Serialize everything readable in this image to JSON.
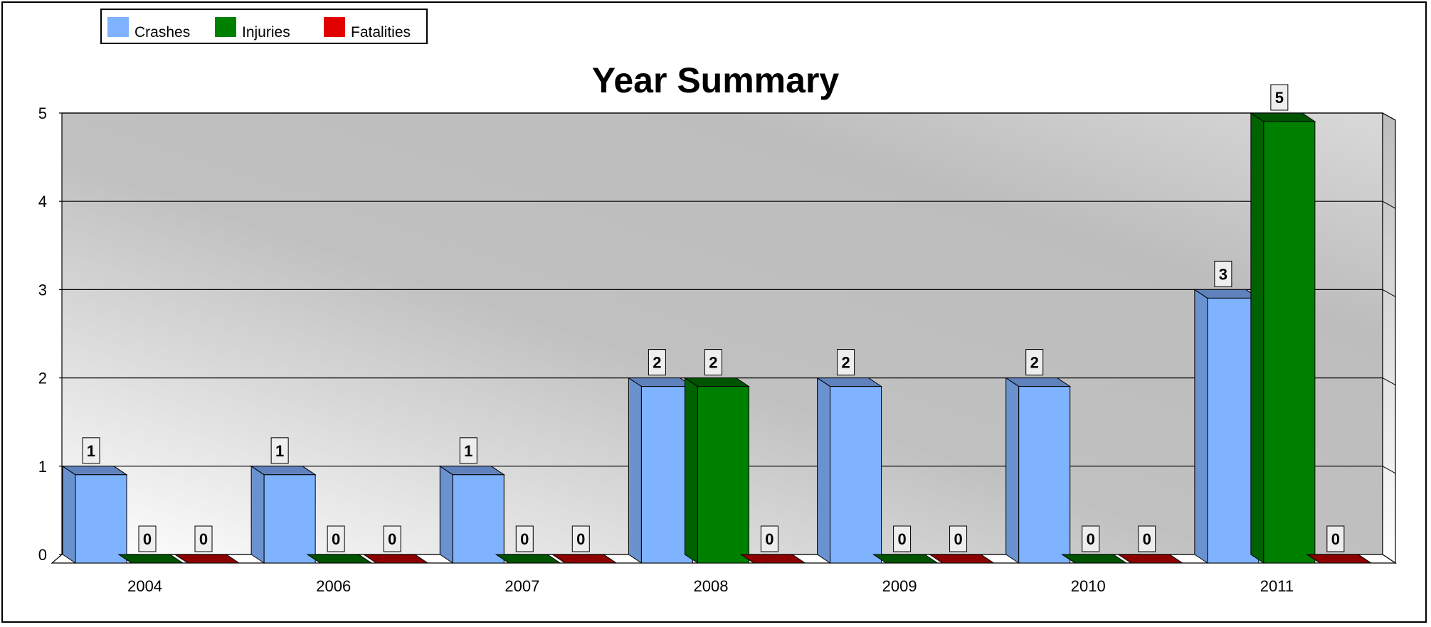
{
  "chart_data": {
    "type": "bar",
    "title": "Year Summary",
    "xlabel": "",
    "ylabel": "",
    "categories": [
      "2004",
      "2006",
      "2007",
      "2008",
      "2009",
      "2010",
      "2011"
    ],
    "series": [
      {
        "name": "Crashes",
        "values": [
          1,
          1,
          1,
          2,
          2,
          2,
          3
        ],
        "color": "#7fb2ff",
        "side_color": "#6a92cf",
        "top_color": "#5f82bd"
      },
      {
        "name": "Injuries",
        "values": [
          0,
          0,
          0,
          2,
          0,
          0,
          5
        ],
        "color": "#008000",
        "side_color": "#006200",
        "top_color": "#005400"
      },
      {
        "name": "Fatalities",
        "values": [
          0,
          0,
          0,
          0,
          0,
          0,
          0
        ],
        "color": "#e00000",
        "side_color": "#a00000",
        "top_color": "#8c0000"
      }
    ],
    "ylim": [
      0,
      5
    ],
    "yticks": [
      "0",
      "1",
      "2",
      "3",
      "4",
      "5"
    ],
    "grid": true,
    "legend_position": "top-left",
    "style": "3d-bar"
  }
}
